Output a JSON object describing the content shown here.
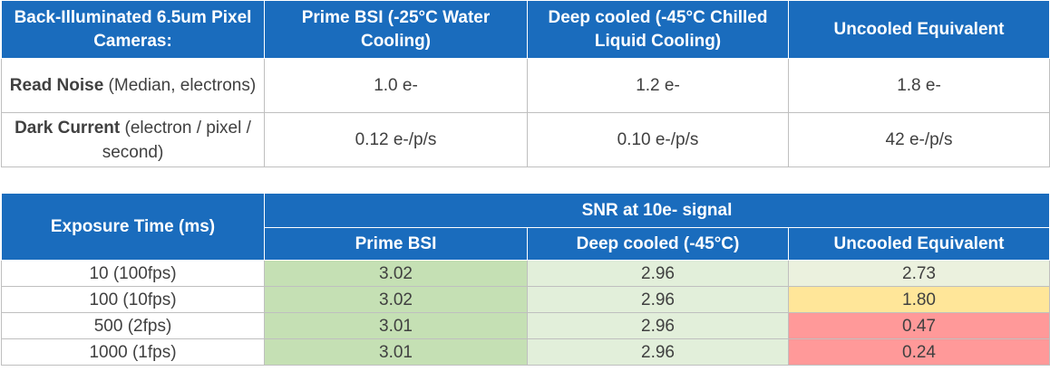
{
  "table1": {
    "headers": [
      "Back-Illuminated 6.5um Pixel Cameras:",
      "Prime BSI (-25°C Water Cooling)",
      "Deep cooled (-45°C Chilled Liquid Cooling)",
      "Uncooled Equivalent"
    ],
    "rows": [
      {
        "label_bold": "Read Noise",
        "label_rest": " (Median, electrons)",
        "values": [
          "1.0 e-",
          "1.2 e-",
          "1.8 e-"
        ]
      },
      {
        "label_bold": "Dark Current",
        "label_rest": " (electron / pixel / second)",
        "values": [
          "0.12 e-/p/s",
          "0.10 e-/p/s",
          "42 e-/p/s"
        ]
      }
    ]
  },
  "table2": {
    "row_header": "Exposure Time (ms)",
    "group_header": "SNR at 10e- signal",
    "columns": [
      "Prime BSI",
      "Deep cooled (-45°C)",
      "Uncooled Equivalent"
    ],
    "rows": [
      {
        "label": "10 (100fps)",
        "values": [
          "3.02",
          "2.96",
          "2.73"
        ]
      },
      {
        "label": "100 (10fps)",
        "values": [
          "3.02",
          "2.96",
          "1.80"
        ]
      },
      {
        "label": "500 (2fps)",
        "values": [
          "3.01",
          "2.96",
          "0.47"
        ]
      },
      {
        "label": "1000 (1fps)",
        "values": [
          "3.01",
          "2.96",
          "0.24"
        ]
      }
    ]
  },
  "colors": {
    "header_blue": "#1a6cbd",
    "green_high": "#c5e0b4",
    "green_mid": "#e2efda",
    "green_light": "#ebf1de",
    "yellow": "#ffe699",
    "red": "#ff9999"
  }
}
